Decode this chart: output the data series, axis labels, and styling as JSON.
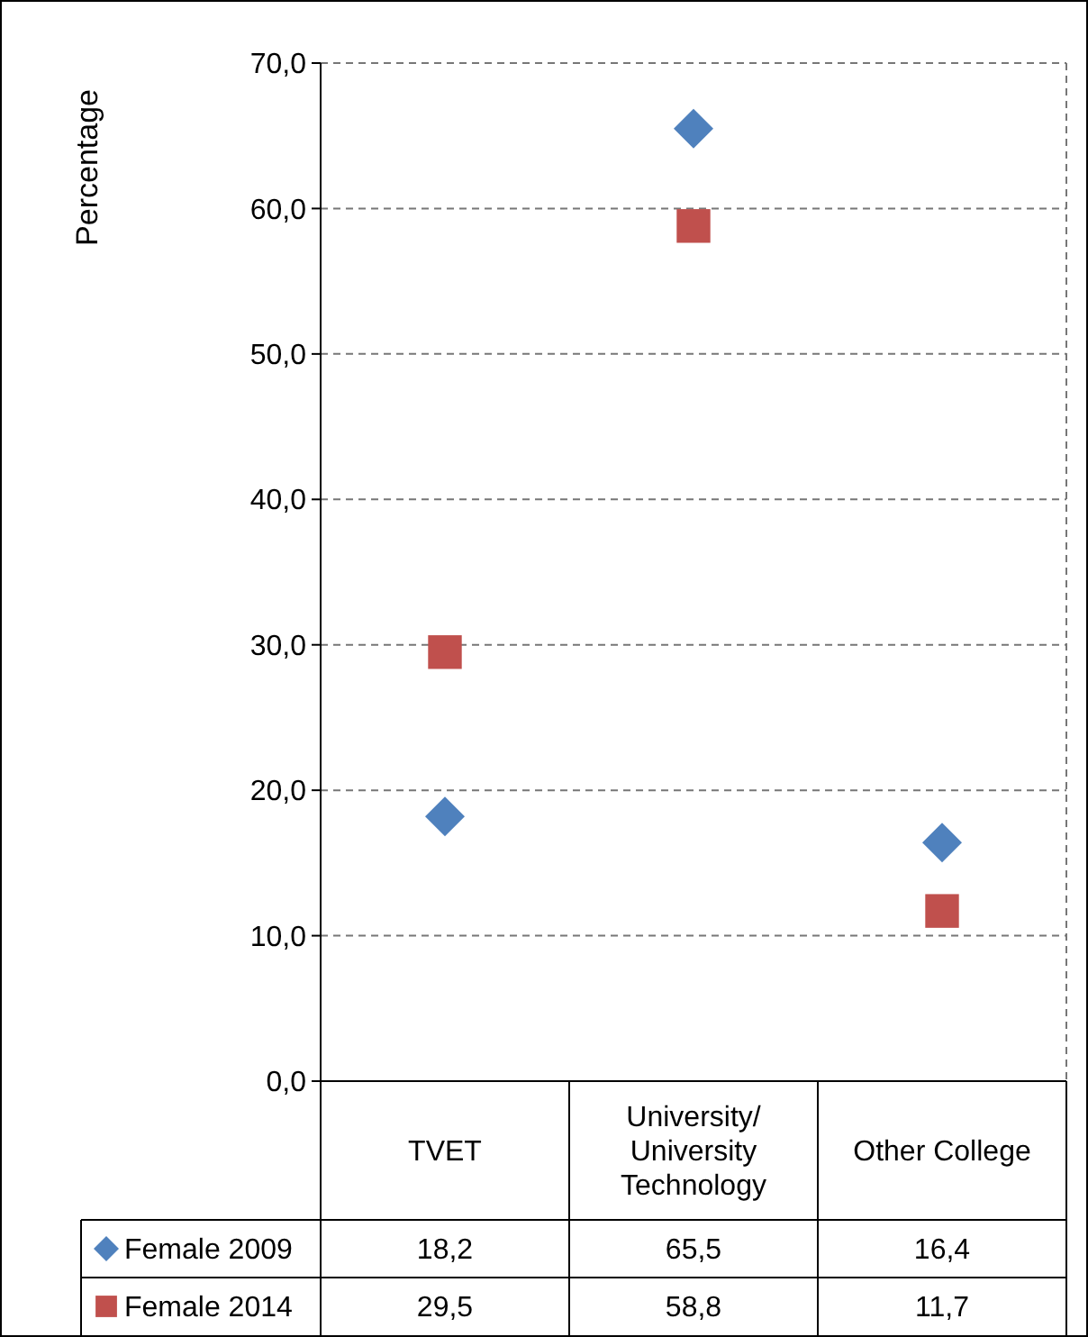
{
  "chart_data": {
    "type": "scatter",
    "ylabel": "Percentage",
    "categories": [
      "TVET",
      "University/ University Technology",
      "Other College"
    ],
    "series": [
      {
        "name": "Female 2009",
        "color": "#4f81bd",
        "marker": "diamond",
        "values": [
          18.2,
          65.5,
          16.4
        ],
        "value_labels": [
          "18,2",
          "65,5",
          "16,4"
        ]
      },
      {
        "name": "Female 2014",
        "color": "#c0504d",
        "marker": "square",
        "values": [
          29.5,
          58.8,
          11.7
        ],
        "value_labels": [
          "29,5",
          "58,8",
          "11,7"
        ]
      }
    ],
    "ylim": [
      0,
      70
    ],
    "yticks": [
      {
        "value": 0,
        "label": "0,0"
      },
      {
        "value": 10,
        "label": "10,0"
      },
      {
        "value": 20,
        "label": "20,0"
      },
      {
        "value": 30,
        "label": "30,0"
      },
      {
        "value": 40,
        "label": "40,0"
      },
      {
        "value": 50,
        "label": "50,0"
      },
      {
        "value": 60,
        "label": "60,0"
      },
      {
        "value": 70,
        "label": "70,0"
      }
    ],
    "grid": "y",
    "legend": "bottom"
  }
}
